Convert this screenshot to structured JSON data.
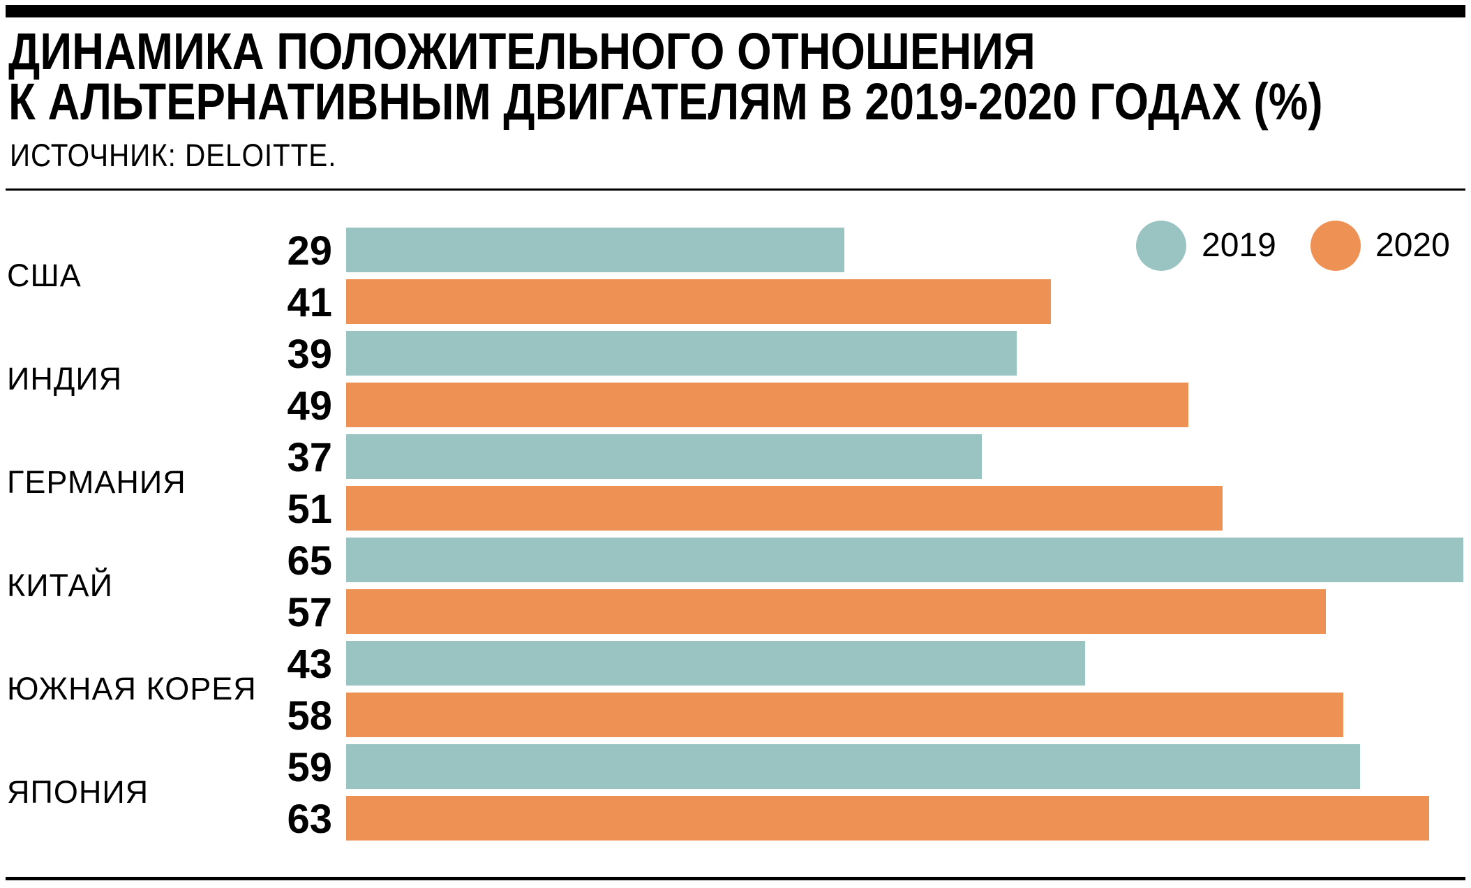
{
  "chart_data": {
    "type": "bar",
    "orientation": "horizontal",
    "title": "ДИНАМИКА ПОЛОЖИТЕЛЬНОГО ОТНОШЕНИЯ К АЛЬТЕРНАТИВНЫМ ДВИГАТЕЛЯМ В 2019-2020 ГОДАХ (%)",
    "title_lines": [
      "ДИНАМИКА ПОЛОЖИТЕЛЬНОГО ОТНОШЕНИЯ",
      "К АЛЬТЕРНАТИВНЫМ ДВИГАТЕЛЯМ В 2019-2020 ГОДАХ (%)"
    ],
    "subtitle": "ИСТОЧНИК: DELOITTE.",
    "xlabel": "",
    "ylabel": "",
    "xlim": [
      0,
      65
    ],
    "grid": false,
    "legend_position": "top-right",
    "categories": [
      "США",
      "ИНДИЯ",
      "ГЕРМАНИЯ",
      "КИТАЙ",
      "ЮЖНАЯ КОРЕЯ",
      "ЯПОНИЯ"
    ],
    "series": [
      {
        "name": "2019",
        "color": "#99c4c2",
        "values": [
          29,
          39,
          37,
          65,
          43,
          59
        ]
      },
      {
        "name": "2020",
        "color": "#ee9154",
        "values": [
          41,
          49,
          51,
          57,
          58,
          63
        ]
      }
    ]
  }
}
